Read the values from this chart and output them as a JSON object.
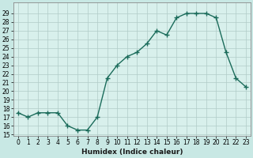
{
  "x": [
    0,
    1,
    2,
    3,
    4,
    5,
    6,
    7,
    8,
    9,
    10,
    11,
    12,
    13,
    14,
    15,
    16,
    17,
    18,
    19,
    20,
    21,
    22,
    23
  ],
  "y": [
    17.5,
    17.0,
    17.5,
    17.5,
    17.5,
    16.0,
    15.5,
    15.5,
    17.0,
    21.5,
    23.0,
    24.0,
    24.5,
    25.5,
    27.0,
    26.5,
    28.5,
    29.0,
    29.0,
    29.0,
    28.5,
    24.5,
    21.5,
    20.5
  ],
  "line_color": "#1a6b5a",
  "marker": "+",
  "markersize": 4,
  "linewidth": 1.0,
  "bg_color": "#c8e8e4",
  "plot_bg_color": "#d8f0ec",
  "grid_color": "#b0ccc8",
  "xlabel": "Humidex (Indice chaleur)",
  "ylim": [
    15,
    30
  ],
  "xlim": [
    -0.5,
    23.5
  ],
  "yticks": [
    15,
    16,
    17,
    18,
    19,
    20,
    21,
    22,
    23,
    24,
    25,
    26,
    27,
    28,
    29
  ],
  "xticks": [
    0,
    1,
    2,
    3,
    4,
    5,
    6,
    7,
    8,
    9,
    10,
    11,
    12,
    13,
    14,
    15,
    16,
    17,
    18,
    19,
    20,
    21,
    22,
    23
  ],
  "tick_fontsize": 5.5,
  "label_fontsize": 6.5,
  "spine_color": "#888888"
}
